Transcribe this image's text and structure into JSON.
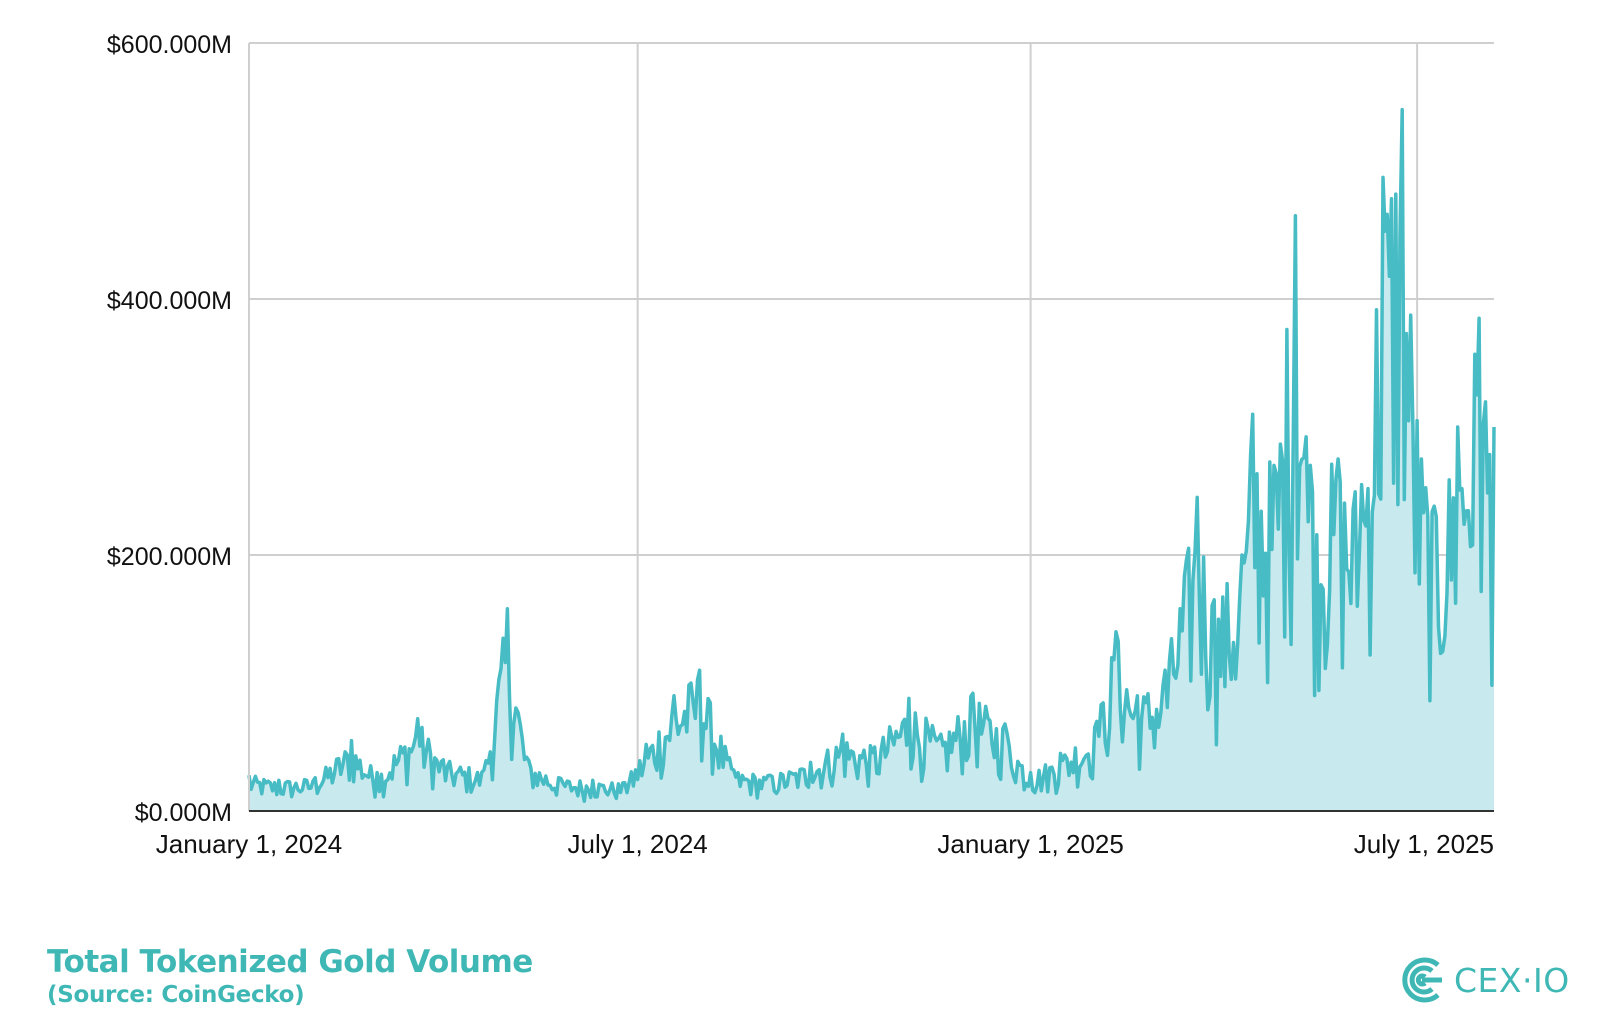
{
  "chart_data": {
    "type": "area",
    "title": "Total Tokenized Gold Volume",
    "subtitle": "(Source: CoinGecko)",
    "series": [
      {
        "name": "Total Tokenized Gold Volume",
        "color": "#47bcc4",
        "fill_color": "#c8eaee",
        "anchors": [
          [
            "2024-01-01",
            28
          ],
          [
            "2024-01-15",
            24
          ],
          [
            "2024-02-01",
            26
          ],
          [
            "2024-02-18",
            55
          ],
          [
            "2024-03-01",
            30
          ],
          [
            "2024-03-20",
            72
          ],
          [
            "2024-04-01",
            40
          ],
          [
            "2024-04-20",
            32
          ],
          [
            "2024-05-01",
            158
          ],
          [
            "2024-05-10",
            42
          ],
          [
            "2024-05-25",
            26
          ],
          [
            "2024-06-10",
            24
          ],
          [
            "2024-06-25",
            22
          ],
          [
            "2024-07-05",
            52
          ],
          [
            "2024-07-18",
            90
          ],
          [
            "2024-07-30",
            110
          ],
          [
            "2024-08-15",
            32
          ],
          [
            "2024-09-01",
            28
          ],
          [
            "2024-09-20",
            38
          ],
          [
            "2024-10-05",
            60
          ],
          [
            "2024-10-20",
            50
          ],
          [
            "2024-11-05",
            88
          ],
          [
            "2024-11-20",
            60
          ],
          [
            "2024-12-05",
            92
          ],
          [
            "2024-12-20",
            68
          ],
          [
            "2025-01-01",
            30
          ],
          [
            "2025-01-15",
            45
          ],
          [
            "2025-02-01",
            70
          ],
          [
            "2025-02-10",
            140
          ],
          [
            "2025-02-20",
            90
          ],
          [
            "2025-03-05",
            110
          ],
          [
            "2025-03-20",
            245
          ],
          [
            "2025-03-28",
            165
          ],
          [
            "2025-04-10",
            200
          ],
          [
            "2025-04-15",
            310
          ],
          [
            "2025-04-25",
            270
          ],
          [
            "2025-05-05",
            465
          ],
          [
            "2025-05-12",
            270
          ],
          [
            "2025-05-25",
            275
          ],
          [
            "2025-06-05",
            255
          ],
          [
            "2025-06-15",
            495
          ],
          [
            "2025-06-24",
            548
          ],
          [
            "2025-07-01",
            305
          ],
          [
            "2025-07-10",
            230
          ],
          [
            "2025-07-20",
            300
          ],
          [
            "2025-07-30",
            385
          ],
          [
            "2025-08-06",
            300
          ]
        ]
      }
    ],
    "x_range": [
      "2024-01-01",
      "2025-08-06"
    ],
    "xticks": [
      {
        "date": "2024-01-01",
        "label": "January 1, 2024"
      },
      {
        "date": "2024-07-01",
        "label": "July 1, 2024"
      },
      {
        "date": "2025-01-01",
        "label": "January 1, 2025"
      },
      {
        "date": "2025-07-01",
        "label": "July 1, 2025"
      }
    ],
    "yticks": [
      {
        "value": 0,
        "label": "$0.000M"
      },
      {
        "value": 200,
        "label": "$200.000M"
      },
      {
        "value": 400,
        "label": "$400.000M"
      },
      {
        "value": 600,
        "label": "$600.000M"
      }
    ],
    "ylim": [
      0,
      600
    ],
    "xlabel": "",
    "ylabel": "",
    "grid": true,
    "legend": "none"
  },
  "caption": {
    "title": "Total Tokenized Gold Volume",
    "source": "(Source: CoinGecko)"
  },
  "brand": {
    "logo_text": "CEX·IO",
    "color": "#3fb8b5"
  }
}
